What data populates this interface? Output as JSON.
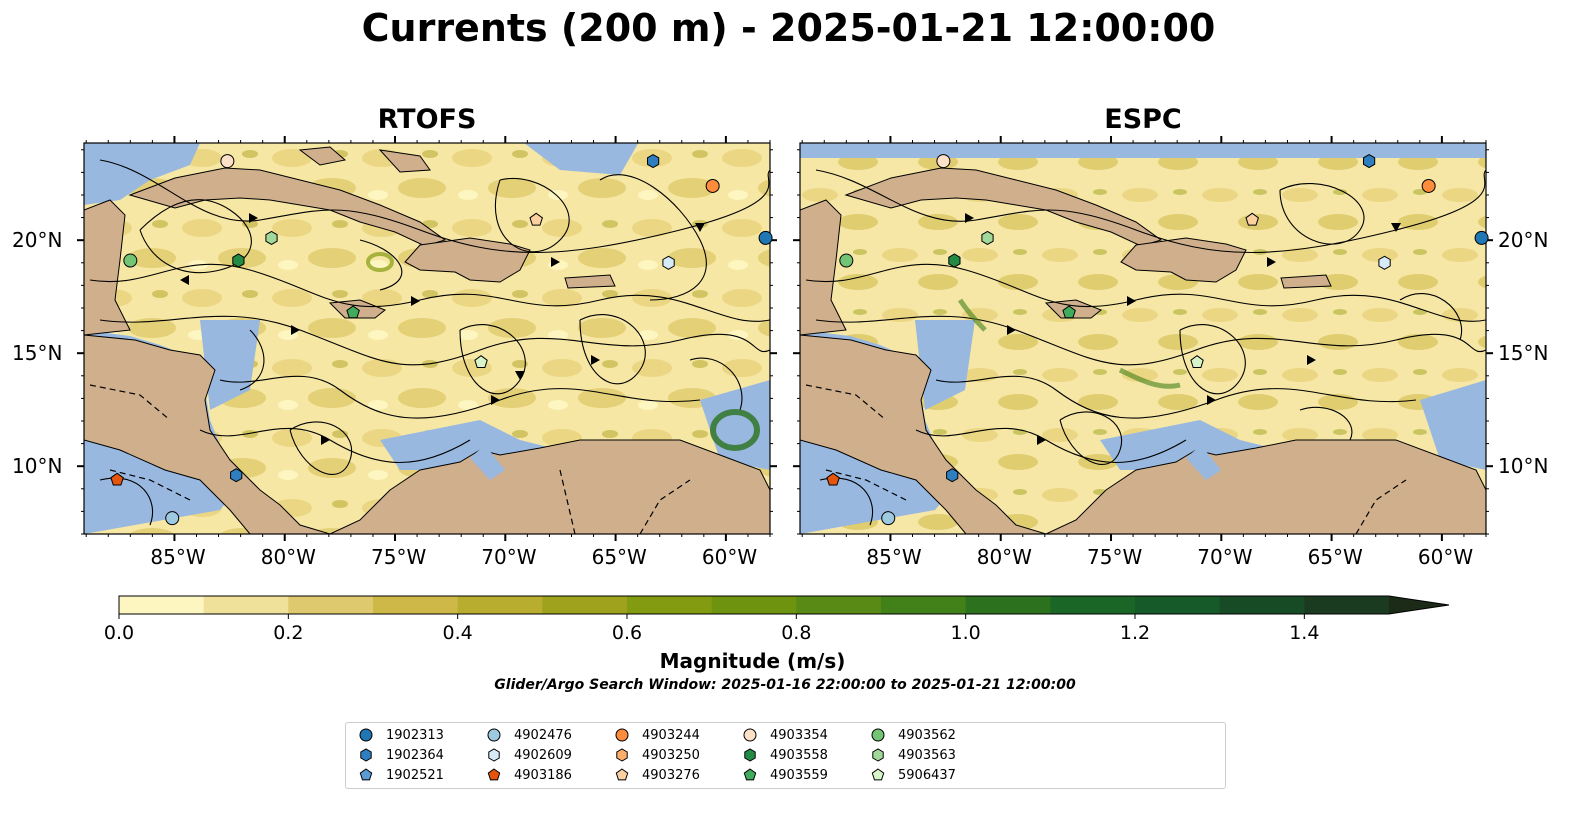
{
  "title": "Currents (200 m) - 2025-01-21 12:00:00",
  "panels": [
    {
      "title": "RTOFS"
    },
    {
      "title": "ESPC"
    }
  ],
  "axes": {
    "lon_ticks": [
      "85°W",
      "80°W",
      "75°W",
      "70°W",
      "65°W",
      "60°W"
    ],
    "lat_ticks": [
      "20°N",
      "15°N",
      "10°N"
    ]
  },
  "colorbar": {
    "label": "Magnitude (m/s)",
    "ticks": [
      "0.0",
      "0.2",
      "0.4",
      "0.6",
      "0.8",
      "1.0",
      "1.2",
      "1.4"
    ],
    "range": [
      0,
      1.5
    ],
    "extend": "max",
    "colors": [
      "#fef6c0",
      "#efe09a",
      "#dfc96e",
      "#cdb848",
      "#b8ad2e",
      "#9ea21c",
      "#839b10",
      "#6e930f",
      "#588a15",
      "#428019",
      "#2c721e",
      "#1a6626",
      "#155a28",
      "#174b25",
      "#1b3b20",
      "#1c2b18"
    ]
  },
  "search_window": "Glider/Argo Search Window: 2025-01-16 22:00:00 to 2025-01-21 12:00:00",
  "map_colors": {
    "land": "#d0b08c",
    "shallow_water": "#98b8e0",
    "streamline": "#000000"
  },
  "legend": [
    {
      "id": "1902313",
      "marker": "circle",
      "color": "#1f77b4"
    },
    {
      "id": "1902364",
      "marker": "hexagon",
      "color": "#2f7fc0"
    },
    {
      "id": "1902521",
      "marker": "pentagon",
      "color": "#5a9bd5"
    },
    {
      "id": "4902476",
      "marker": "circle",
      "color": "#9ecae1"
    },
    {
      "id": "4902609",
      "marker": "hexagon",
      "color": "#d6eaf8"
    },
    {
      "id": "4903186",
      "marker": "pentagon",
      "color": "#e6550d"
    },
    {
      "id": "4903244",
      "marker": "circle",
      "color": "#fd8d3c"
    },
    {
      "id": "4903250",
      "marker": "hexagon",
      "color": "#fdae6b"
    },
    {
      "id": "4903276",
      "marker": "pentagon",
      "color": "#fdd0a2"
    },
    {
      "id": "4903354",
      "marker": "circle",
      "color": "#fde0c8"
    },
    {
      "id": "4903558",
      "marker": "hexagon",
      "color": "#238b45"
    },
    {
      "id": "4903559",
      "marker": "pentagon",
      "color": "#41ab5d"
    },
    {
      "id": "4903562",
      "marker": "circle",
      "color": "#74c476"
    },
    {
      "id": "4903563",
      "marker": "hexagon",
      "color": "#a1d99b"
    },
    {
      "id": "5906437",
      "marker": "pentagon",
      "color": "#d7f5c8"
    }
  ],
  "floats": [
    {
      "panel": 0,
      "id": "1902313",
      "lon": -58.2,
      "lat": 20.1
    },
    {
      "panel": 0,
      "id": "1902364",
      "lon": -63.3,
      "lat": 23.5
    },
    {
      "panel": 0,
      "id": "4903244",
      "lon": -60.6,
      "lat": 22.4
    },
    {
      "panel": 0,
      "id": "4903354",
      "lon": -82.6,
      "lat": 23.5
    },
    {
      "panel": 0,
      "id": "4903276",
      "lon": -68.6,
      "lat": 20.9
    },
    {
      "panel": 0,
      "id": "4902609",
      "lon": -62.6,
      "lat": 19.0
    },
    {
      "panel": 0,
      "id": "4903563",
      "lon": -80.6,
      "lat": 20.1
    },
    {
      "panel": 0,
      "id": "4903558",
      "lon": -82.1,
      "lat": 19.1
    },
    {
      "panel": 0,
      "id": "4903562",
      "lon": -87.0,
      "lat": 19.1
    },
    {
      "panel": 0,
      "id": "4903559",
      "lon": -76.9,
      "lat": 16.8
    },
    {
      "panel": 0,
      "id": "5906437",
      "lon": -71.1,
      "lat": 14.6
    },
    {
      "panel": 0,
      "id": "1902364",
      "lon": -82.2,
      "lat": 9.6
    },
    {
      "panel": 0,
      "id": "4903186",
      "lon": -87.6,
      "lat": 9.4
    },
    {
      "panel": 0,
      "id": "4902476",
      "lon": -85.1,
      "lat": 7.7
    },
    {
      "panel": 1,
      "id": "1902313",
      "lon": -58.2,
      "lat": 20.1
    },
    {
      "panel": 1,
      "id": "1902364",
      "lon": -63.3,
      "lat": 23.5
    },
    {
      "panel": 1,
      "id": "4903244",
      "lon": -60.6,
      "lat": 22.4
    },
    {
      "panel": 1,
      "id": "4903354",
      "lon": -82.6,
      "lat": 23.5
    },
    {
      "panel": 1,
      "id": "4903276",
      "lon": -68.6,
      "lat": 20.9
    },
    {
      "panel": 1,
      "id": "4902609",
      "lon": -62.6,
      "lat": 19.0
    },
    {
      "panel": 1,
      "id": "4903563",
      "lon": -80.6,
      "lat": 20.1
    },
    {
      "panel": 1,
      "id": "4903558",
      "lon": -82.1,
      "lat": 19.1
    },
    {
      "panel": 1,
      "id": "4903562",
      "lon": -87.0,
      "lat": 19.1
    },
    {
      "panel": 1,
      "id": "4903559",
      "lon": -76.9,
      "lat": 16.8
    },
    {
      "panel": 1,
      "id": "5906437",
      "lon": -71.1,
      "lat": 14.6
    },
    {
      "panel": 1,
      "id": "1902364",
      "lon": -82.2,
      "lat": 9.6
    },
    {
      "panel": 1,
      "id": "4903186",
      "lon": -87.6,
      "lat": 9.4
    },
    {
      "panel": 1,
      "id": "4902476",
      "lon": -85.1,
      "lat": 7.7
    }
  ]
}
